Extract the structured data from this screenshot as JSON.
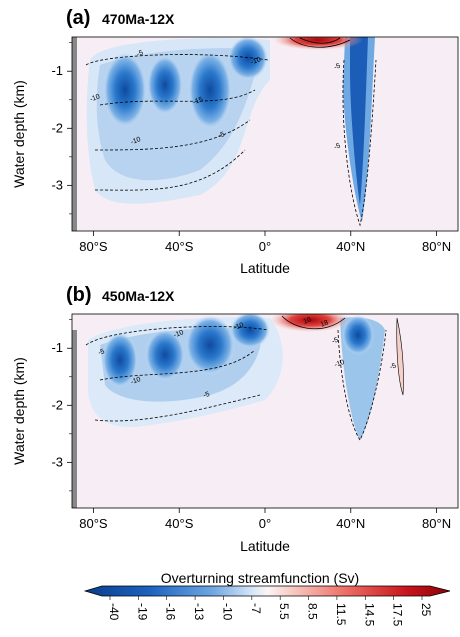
{
  "chart_data": [
    {
      "type": "heatmap",
      "panel_label": "(a)",
      "title": "470Ma-12X",
      "xlabel": "Latitude",
      "ylabel": "Water depth (km)",
      "xlim": [
        -90,
        90
      ],
      "ylim": [
        -3.8,
        -0.4
      ],
      "xticks": [
        -80,
        -40,
        0,
        40,
        80
      ],
      "xtick_labels": [
        "80°S",
        "40°S",
        "0°",
        "40°N",
        "80°N"
      ],
      "yticks": [
        -1,
        -2,
        -3
      ],
      "ytick_labels": [
        "-1",
        "-2",
        "-3"
      ],
      "contour_labels": [
        {
          "text": "-5",
          "lat": -58,
          "depth": -0.72
        },
        {
          "text": "-10",
          "lat": -79,
          "depth": -1.5
        },
        {
          "text": "-10",
          "lat": -60,
          "depth": -2.25
        },
        {
          "text": "-5",
          "lat": -20,
          "depth": -2.15
        },
        {
          "text": "-10",
          "lat": -4,
          "depth": -0.85
        },
        {
          "text": "-15",
          "lat": -31,
          "depth": -1.55
        },
        {
          "text": "-5",
          "lat": 34,
          "depth": -0.95
        },
        {
          "text": "-5",
          "lat": 34,
          "depth": -2.35
        }
      ],
      "cells": [
        {
          "lat": -72,
          "depth": -1.5,
          "value": -17
        },
        {
          "lat": -50,
          "depth": -1.3,
          "value": -14
        },
        {
          "lat": -28,
          "depth": -1.4,
          "value": -18
        },
        {
          "lat": -10,
          "depth": -0.9,
          "value": -22
        },
        {
          "lat": 0,
          "depth": -0.8,
          "value": -20
        },
        {
          "lat": 42,
          "depth": -1.6,
          "value": -28
        },
        {
          "lat": 15,
          "depth": -0.42,
          "value": 18
        },
        {
          "lat": 0,
          "depth": -3.45,
          "value": -8
        }
      ]
    },
    {
      "type": "heatmap",
      "panel_label": "(b)",
      "title": "450Ma-12X",
      "xlabel": "Latitude",
      "ylabel": "Water depth (km)",
      "xlim": [
        -90,
        90
      ],
      "ylim": [
        -3.8,
        -0.4
      ],
      "xticks": [
        -80,
        -40,
        0,
        40,
        80
      ],
      "xtick_labels": [
        "80°S",
        "40°S",
        "0°",
        "40°N",
        "80°N"
      ],
      "yticks": [
        -1,
        -2,
        -3
      ],
      "ytick_labels": [
        "-1",
        "-2",
        "-3"
      ],
      "contour_labels": [
        {
          "text": "-5",
          "lat": -76,
          "depth": -1.1
        },
        {
          "text": "-10",
          "lat": -40,
          "depth": -0.78
        },
        {
          "text": "-10",
          "lat": -12,
          "depth": -0.65
        },
        {
          "text": "-10",
          "lat": -60,
          "depth": -1.6
        },
        {
          "text": "-5",
          "lat": -27,
          "depth": -1.85
        },
        {
          "text": "10",
          "lat": 20,
          "depth": -0.55
        },
        {
          "text": "18",
          "lat": 28,
          "depth": -0.6
        },
        {
          "text": "-5",
          "lat": 33,
          "depth": -0.9
        },
        {
          "text": "-10",
          "lat": 35,
          "depth": -1.3
        },
        {
          "text": "-5",
          "lat": 60,
          "depth": -1.35
        }
      ],
      "cells": [
        {
          "lat": -70,
          "depth": -1.3,
          "value": -15
        },
        {
          "lat": -48,
          "depth": -1.2,
          "value": -17
        },
        {
          "lat": -28,
          "depth": -0.9,
          "value": -20
        },
        {
          "lat": -8,
          "depth": -0.7,
          "value": -22
        },
        {
          "lat": 0,
          "depth": -1.0,
          "value": -16
        },
        {
          "lat": 40,
          "depth": -1.1,
          "value": -16
        },
        {
          "lat": 22,
          "depth": -0.42,
          "value": 20
        },
        {
          "lat": 61,
          "depth": -1.3,
          "value": 6
        }
      ]
    }
  ],
  "colorbar": {
    "label": "Overturning streamfunction (Sv)",
    "tick_labels": [
      "-40",
      "-19",
      "-16",
      "-13",
      "-10",
      "-7",
      "5.5",
      "8.5",
      "11.5",
      "14.5",
      "17.5",
      "25"
    ]
  },
  "colors": {
    "background_field": "#f6eef4",
    "strong_negative": "#0b3d8c",
    "mid_negative": "#2f7ed0",
    "weak_negative": "#bcd6ef",
    "strong_positive": "#a8050c",
    "mid_positive": "#e0433f",
    "weak_positive": "#f6b9b0"
  }
}
